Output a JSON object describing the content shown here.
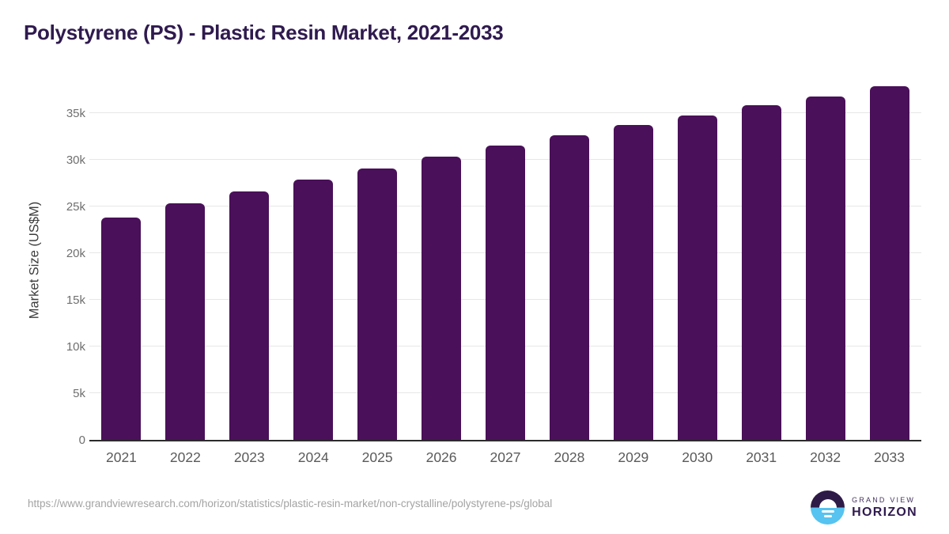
{
  "chart_data": {
    "type": "bar",
    "title": "Polystyrene (PS) - Plastic Resin Market, 2021-2033",
    "xlabel": "",
    "ylabel": "Market Size (US$M)",
    "categories": [
      "2021",
      "2022",
      "2023",
      "2024",
      "2025",
      "2026",
      "2027",
      "2028",
      "2029",
      "2030",
      "2031",
      "2032",
      "2033"
    ],
    "values": [
      23800,
      25300,
      26600,
      27900,
      29100,
      30300,
      31500,
      32600,
      33700,
      34700,
      35800,
      36800,
      37900
    ],
    "ylim": [
      0,
      38800
    ],
    "ytick_values": [
      0,
      5000,
      10000,
      15000,
      20000,
      25000,
      30000,
      35000
    ],
    "ytick_labels": [
      "0",
      "5k",
      "10k",
      "15k",
      "20k",
      "25k",
      "30k",
      "35k"
    ],
    "grid": "horizontal",
    "legend": "none",
    "bar_color": "#4a1059"
  },
  "footer": {
    "source_url": "https://www.grandviewresearch.com/horizon/statistics/plastic-resin-market/non-crystalline/polystyrene-ps/global",
    "logo": {
      "line1": "GRAND VIEW",
      "line2": "HORIZON"
    }
  },
  "colors": {
    "title": "#2f1a4f",
    "bar": "#4a1059",
    "gridline": "#e7e7e7",
    "axis_line": "#2b2b2b",
    "tick_text": "#6f6f6f",
    "logo_purple": "#2e1a47",
    "logo_blue": "#56c3f0"
  }
}
